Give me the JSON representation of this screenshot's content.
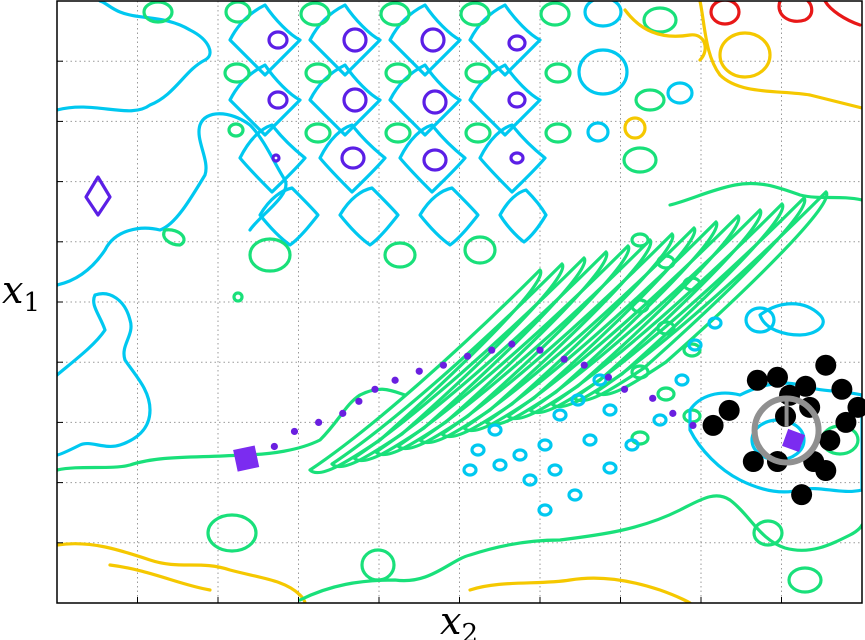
{
  "chart_data": {
    "type": "scatter",
    "title": "",
    "xlabel": "x",
    "xlabel_subscript": "2",
    "ylabel": "x",
    "ylabel_subscript": "1",
    "xlim": [
      0,
      10
    ],
    "ylim": [
      0,
      10
    ],
    "grid": true,
    "tick_labels_shown": false,
    "colors": {
      "contour_purple": "#5b1fe6",
      "contour_cyan": "#00c8f0",
      "contour_green": "#19e07a",
      "contour_yellow": "#f5c800",
      "contour_red": "#e81818",
      "path_marker": "#6a1fe0",
      "start_end_marker": "#7b2cf0",
      "sample_points": "#000000",
      "circle": "#909090"
    },
    "series": [
      {
        "kind": "path",
        "values": [
          [
            2.3,
            2.45
          ],
          [
            2.7,
            2.6
          ],
          [
            2.95,
            2.85
          ],
          [
            3.25,
            3.0
          ],
          [
            3.55,
            3.15
          ],
          [
            3.75,
            3.35
          ],
          [
            3.95,
            3.55
          ],
          [
            4.2,
            3.7
          ],
          [
            4.5,
            3.85
          ],
          [
            4.8,
            3.95
          ],
          [
            5.1,
            4.1
          ],
          [
            5.4,
            4.2
          ],
          [
            5.65,
            4.3
          ],
          [
            6.0,
            4.2
          ],
          [
            6.3,
            4.05
          ],
          [
            6.55,
            3.95
          ],
          [
            6.85,
            3.75
          ],
          [
            7.05,
            3.55
          ],
          [
            7.4,
            3.4
          ],
          [
            7.65,
            3.15
          ],
          [
            7.9,
            2.95
          ]
        ]
      },
      {
        "kind": "start_end",
        "values": [
          [
            2.35,
            2.4
          ],
          [
            9.15,
            2.7
          ]
        ]
      },
      {
        "kind": "samples",
        "values": [
          [
            8.7,
            3.7
          ],
          [
            9.3,
            3.6
          ],
          [
            9.55,
            3.95
          ],
          [
            9.1,
            3.45
          ],
          [
            9.75,
            3.55
          ],
          [
            8.35,
            3.2
          ],
          [
            9.8,
            3.0
          ],
          [
            9.95,
            3.25
          ],
          [
            9.6,
            2.7
          ],
          [
            8.65,
            2.35
          ],
          [
            8.95,
            2.35
          ],
          [
            9.4,
            2.35
          ],
          [
            8.15,
            2.95
          ],
          [
            9.55,
            2.2
          ],
          [
            9.25,
            1.8
          ],
          [
            8.95,
            3.75
          ],
          [
            9.05,
            3.1
          ],
          [
            9.35,
            3.25
          ]
        ]
      }
    ]
  }
}
